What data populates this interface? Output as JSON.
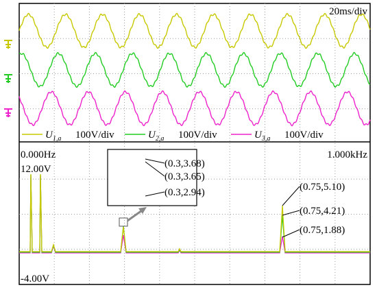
{
  "header": {
    "time_scale": "20ms/div"
  },
  "legend": [
    {
      "symbol": "U",
      "sub": "1,a",
      "scale": "100V/div",
      "color": "#c8c800"
    },
    {
      "symbol": "U",
      "sub": "2,a",
      "scale": "100V/div",
      "color": "#22cc22"
    },
    {
      "symbol": "U",
      "sub": "3,a",
      "scale": "100V/div",
      "color": "#ee22cc"
    }
  ],
  "spectrum": {
    "start": "0.000Hz",
    "end": "1.000kHz",
    "top": "12.00V",
    "bottom": "-4.00V"
  },
  "annotations": [
    {
      "text": "(0.3,3.68)",
      "color": "#22cc22"
    },
    {
      "text": "(0.3,3.65)",
      "color": "#c8c800"
    },
    {
      "text": "(0.3,2.94)",
      "color": "#ee22cc"
    },
    {
      "text": "(0.75,5.10)",
      "color": "#c8c800"
    },
    {
      "text": "(0.75,4.21)",
      "color": "#22cc22"
    },
    {
      "text": "(0.75,1.88)",
      "color": "#ee22cc"
    }
  ]
}
